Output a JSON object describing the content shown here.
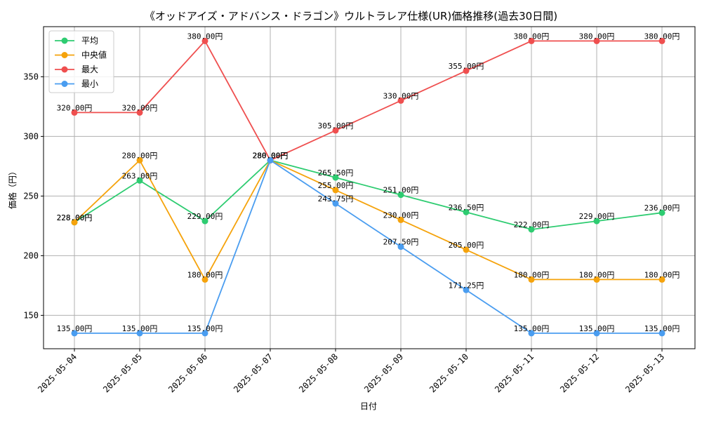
{
  "chart_data": {
    "type": "line",
    "title": "《オッドアイズ・アドバンス・ドラゴン》ウルトラレア仕様(UR)価格推移(過去30日間)",
    "xlabel": "日付",
    "ylabel": "価格（円）",
    "categories": [
      "2025-05-04",
      "2025-05-05",
      "2025-05-06",
      "2025-05-07",
      "2025-05-08",
      "2025-05-09",
      "2025-05-10",
      "2025-05-11",
      "2025-05-12",
      "2025-05-13"
    ],
    "ylim": [
      122,
      392
    ],
    "yticks": [
      150,
      200,
      250,
      300,
      350
    ],
    "grid": true,
    "legend_position": "top-left",
    "series": [
      {
        "name": "平均",
        "color": "#2ecc71",
        "values": [
          228.0,
          263.0,
          229.0,
          280.0,
          265.5,
          251.0,
          236.5,
          222.0,
          229.0,
          236.0
        ],
        "labels": [
          "228.00円",
          "263.00円",
          "229.00円",
          "280.00円",
          "265.50円",
          "251.00円",
          "236.50円",
          "222.00円",
          "229.00円",
          "236.00円"
        ]
      },
      {
        "name": "中央値",
        "color": "#f5a30c",
        "values": [
          228.0,
          280.0,
          180.0,
          280.0,
          255.0,
          230.0,
          205.0,
          180.0,
          180.0,
          180.0
        ],
        "labels": [
          "228.00円",
          "280.00円",
          "180.00円",
          "280.00円",
          "255.00円",
          "230.00円",
          "205.00円",
          "180.00円",
          "180.00円",
          "180.00円"
        ]
      },
      {
        "name": "最大",
        "color": "#ef4f4f",
        "values": [
          320.0,
          320.0,
          380.0,
          280.0,
          305.0,
          330.0,
          355.0,
          380.0,
          380.0,
          380.0
        ],
        "labels": [
          "320.00円",
          "320.00円",
          "380.00円",
          "280.00円",
          "305.00円",
          "330.00円",
          "355.00円",
          "380.00円",
          "380.00円",
          "380.00円"
        ]
      },
      {
        "name": "最小",
        "color": "#4a9df0",
        "values": [
          135.0,
          135.0,
          135.0,
          280.0,
          243.75,
          207.5,
          171.25,
          135.0,
          135.0,
          135.0
        ],
        "labels": [
          "135.00円",
          "135.00円",
          "135.00円",
          "280.00円",
          "243.75円",
          "207.50円",
          "171.25円",
          "135.00円",
          "135.00円",
          "135.00円"
        ]
      }
    ]
  }
}
